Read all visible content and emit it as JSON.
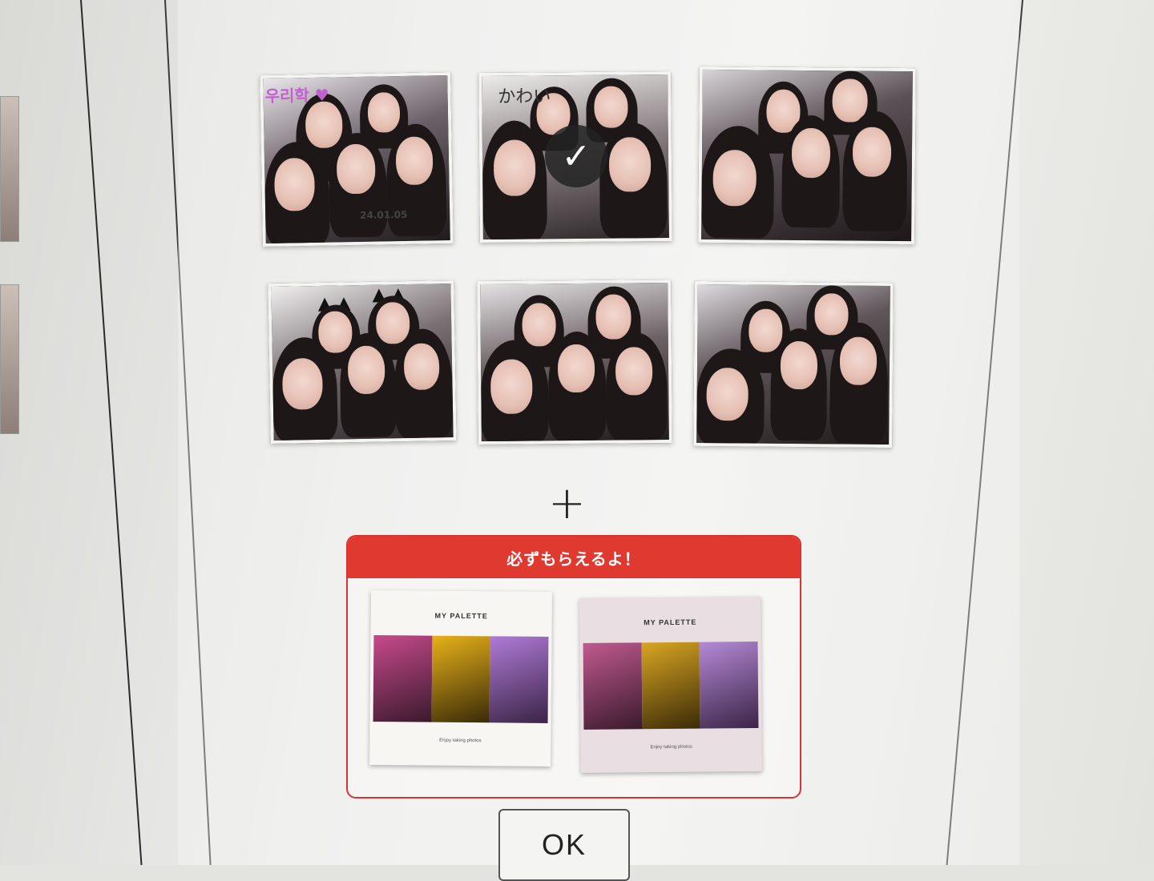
{
  "photos": [
    {
      "id": "photo-1",
      "doodle": "우리학 ♥",
      "date": "24.01.05"
    },
    {
      "id": "photo-2",
      "doodle": "かわい",
      "selected": true
    },
    {
      "id": "photo-3"
    },
    {
      "id": "photo-4"
    },
    {
      "id": "photo-5"
    },
    {
      "id": "photo-6"
    }
  ],
  "check_icon": "✓",
  "plus_icon": "+",
  "promo": {
    "header": "必ずもらえるよ！",
    "albums": [
      {
        "title": "MY PALETTE",
        "footer": "Enjoy taking photos"
      },
      {
        "title": "MY PALETTE",
        "footer": "Enjoy taking photos"
      }
    ]
  },
  "ok_button": {
    "label": "OK"
  },
  "colors": {
    "accent": "#e03a30",
    "selection_overlay": "#232323"
  }
}
